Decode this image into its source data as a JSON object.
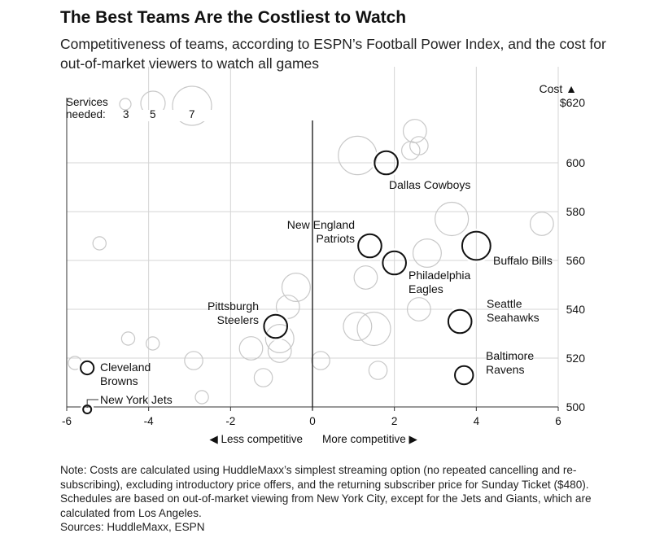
{
  "title": "The Best Teams Are the Costliest to Watch",
  "subtitle": "Competitiveness of teams, according to ESPN’s Football Power Index, and the cost for out-of-market viewers to watch all games",
  "legend": {
    "label_line1": "Services",
    "label_line2": "needed:",
    "sizes": [
      "3",
      "5",
      "7"
    ]
  },
  "x_direction": {
    "left": "◀ Less competitive",
    "right": "More competitive ▶"
  },
  "y_header": {
    "label": "Cost ▲",
    "top_value": "$620"
  },
  "note": "Note: Costs are calculated using HuddleMaxx’s simplest streaming option (no repeated cancelling and re-subscribing), excluding introductory price offers, and the returning subscriber price for Sunday Ticket ($480). Schedules are based on out-of-market viewing from New York City, except for the Jets and Giants, which are calculated from Los Angeles.",
  "sources": "Sources: HuddleMaxx, ESPN",
  "colors": {
    "highlight": "#111111",
    "other": "#c8c8c8",
    "grid": "#d4d4d4",
    "zero_line": "#111111"
  },
  "chart_data": {
    "type": "scatter",
    "x_label": "",
    "y_label": "Cost",
    "xlim": [
      -6,
      6
    ],
    "ylim": [
      500,
      620
    ],
    "x_ticks": [
      -6,
      -4,
      -2,
      0,
      2,
      4,
      6
    ],
    "y_ticks": [
      500,
      520,
      540,
      560,
      580,
      600
    ],
    "size_variable": "Services needed",
    "highlighted": [
      {
        "team_label": [
          "Dallas Cowboys"
        ],
        "x": 1.8,
        "y": 600,
        "services": 3
      },
      {
        "team_label": [
          "New England",
          "Patriots"
        ],
        "x": 1.4,
        "y": 566,
        "services": 3
      },
      {
        "team_label": [
          "Buffalo Bills"
        ],
        "x": 4.0,
        "y": 566,
        "services": 4
      },
      {
        "team_label": [
          "Philadelphia",
          "Eagles"
        ],
        "x": 2.0,
        "y": 559,
        "services": 3
      },
      {
        "team_label": [
          "Pittsburgh",
          "Steelers"
        ],
        "x": -0.9,
        "y": 533,
        "services": 3
      },
      {
        "team_label": [
          "Seattle",
          "Seahawks"
        ],
        "x": 3.6,
        "y": 535,
        "services": 3
      },
      {
        "team_label": [
          "Baltimore",
          "Ravens"
        ],
        "x": 3.7,
        "y": 513,
        "services": 2
      },
      {
        "team_label": [
          "Cleveland",
          "Browns"
        ],
        "x": -5.5,
        "y": 516,
        "services": 1
      },
      {
        "team_label": [
          "New York Jets"
        ],
        "x": -5.5,
        "y": 499,
        "services": 0
      }
    ],
    "others": [
      {
        "x": 2.5,
        "y": 613,
        "services": 3
      },
      {
        "x": 2.6,
        "y": 607,
        "services": 2
      },
      {
        "x": 2.4,
        "y": 605,
        "services": 2
      },
      {
        "x": 1.1,
        "y": 603,
        "services": 6
      },
      {
        "x": 3.4,
        "y": 577,
        "services": 5
      },
      {
        "x": 5.6,
        "y": 575,
        "services": 3
      },
      {
        "x": 2.8,
        "y": 563,
        "services": 4
      },
      {
        "x": 1.3,
        "y": 553,
        "services": 3
      },
      {
        "x": -0.4,
        "y": 549,
        "services": 4
      },
      {
        "x": -0.6,
        "y": 541,
        "services": 3
      },
      {
        "x": 2.6,
        "y": 540,
        "services": 3
      },
      {
        "x": 1.1,
        "y": 533,
        "services": 4
      },
      {
        "x": 1.5,
        "y": 532,
        "services": 5
      },
      {
        "x": -0.8,
        "y": 528,
        "services": 4
      },
      {
        "x": -1.5,
        "y": 524,
        "services": 3
      },
      {
        "x": -0.8,
        "y": 523,
        "services": 3
      },
      {
        "x": 0.2,
        "y": 519,
        "services": 2
      },
      {
        "x": -2.9,
        "y": 519,
        "services": 2
      },
      {
        "x": 1.6,
        "y": 515,
        "services": 2
      },
      {
        "x": -1.2,
        "y": 512,
        "services": 2
      },
      {
        "x": -4.5,
        "y": 528,
        "services": 1
      },
      {
        "x": -3.9,
        "y": 526,
        "services": 1
      },
      {
        "x": -5.2,
        "y": 567,
        "services": 1
      },
      {
        "x": -5.8,
        "y": 518,
        "services": 1
      },
      {
        "x": -2.7,
        "y": 504,
        "services": 1
      }
    ]
  }
}
